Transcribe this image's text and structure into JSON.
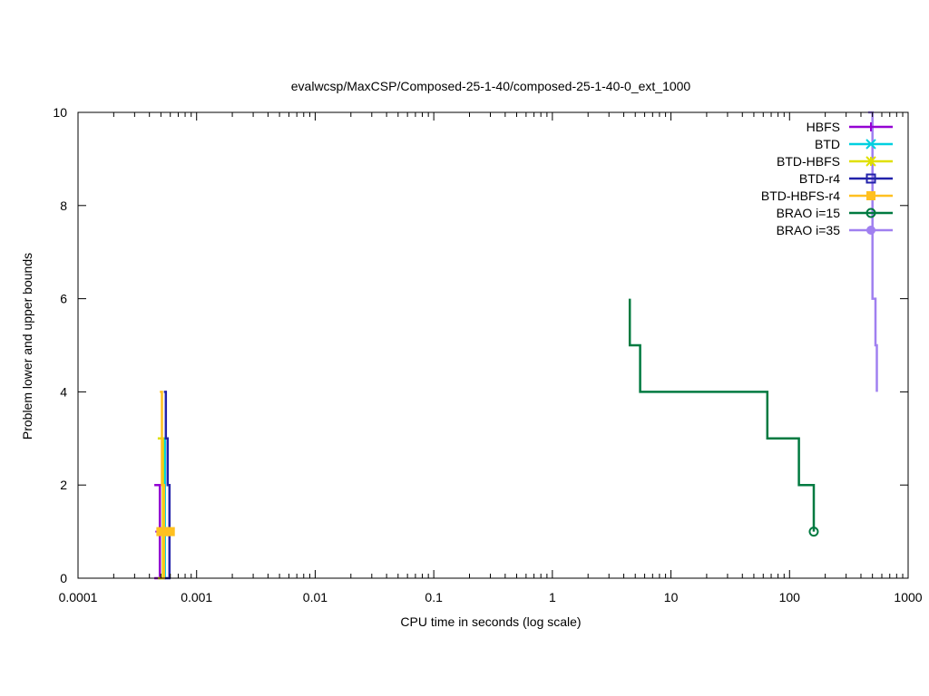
{
  "chart_data": {
    "type": "line",
    "title": "evalwcsp/MaxCSP/Composed-25-1-40/composed-25-1-40-0_ext_1000",
    "xlabel": "CPU time in seconds (log scale)",
    "ylabel": "Problem lower and upper bounds",
    "x_scale": "log",
    "xlim": [
      0.0001,
      1000
    ],
    "ylim": [
      0,
      10
    ],
    "x_ticks": [
      0.0001,
      0.001,
      0.01,
      0.1,
      1,
      10,
      100,
      1000
    ],
    "x_tick_labels": [
      "0.0001",
      "0.001",
      "0.01",
      "0.1",
      "1",
      "10",
      "100",
      "1000"
    ],
    "y_ticks": [
      0,
      2,
      4,
      6,
      8,
      10
    ],
    "y_tick_labels": [
      "0",
      "2",
      "4",
      "6",
      "8",
      "10"
    ],
    "grid": false,
    "legend_position": "top-right",
    "series": [
      {
        "name": "HBFS",
        "color": "#9400d3",
        "marker": "plus",
        "steps": [
          [
            0.00044,
            2
          ],
          [
            0.00049,
            1
          ],
          [
            0.00049,
            0
          ],
          [
            0.00044,
            0
          ]
        ],
        "end_points": [
          [
            0.00049,
            1
          ]
        ]
      },
      {
        "name": "BTD",
        "color": "#00d0e0",
        "marker": "cross",
        "steps": [
          [
            0.00052,
            3
          ],
          [
            0.00054,
            1
          ],
          [
            0.00054,
            0
          ],
          [
            0.00048,
            0
          ]
        ],
        "end_points": []
      },
      {
        "name": "BTD-HBFS",
        "color": "#e0e000",
        "marker": "star",
        "steps": [
          [
            0.00047,
            3
          ],
          [
            0.00052,
            1
          ],
          [
            0.00052,
            0
          ],
          [
            0.00047,
            0
          ]
        ],
        "end_points": []
      },
      {
        "name": "BTD-r4",
        "color": "#2222aa",
        "marker": "open-square",
        "steps": [
          [
            0.00053,
            4
          ],
          [
            0.00055,
            3
          ],
          [
            0.00057,
            2
          ],
          [
            0.00059,
            1
          ],
          [
            0.00059,
            0
          ],
          [
            0.00053,
            0
          ]
        ],
        "end_points": []
      },
      {
        "name": "BTD-HBFS-r4",
        "color": "#ffc020",
        "marker": "filled-square",
        "steps": [
          [
            0.00049,
            4
          ],
          [
            0.00051,
            2
          ],
          [
            0.00053,
            1
          ],
          [
            0.00053,
            0
          ],
          [
            0.00049,
            0
          ]
        ],
        "end_points": [
          [
            0.0005,
            1
          ],
          [
            0.00055,
            1
          ],
          [
            0.0006,
            1
          ]
        ]
      },
      {
        "name": "BRAO i=15",
        "color": "#007a40",
        "marker": "open-circle",
        "steps": [
          [
            4.5,
            6
          ],
          [
            4.5,
            5
          ],
          [
            5.5,
            4
          ],
          [
            65,
            3
          ],
          [
            120,
            2
          ],
          [
            160,
            1
          ]
        ],
        "end_points": [
          [
            160,
            1
          ]
        ]
      },
      {
        "name": "BRAO i=35",
        "color": "#a080f0",
        "marker": "filled-circle",
        "steps": [
          [
            460,
            10
          ],
          [
            500,
            6
          ],
          [
            530,
            5
          ],
          [
            545,
            4
          ]
        ],
        "end_points": []
      }
    ]
  }
}
